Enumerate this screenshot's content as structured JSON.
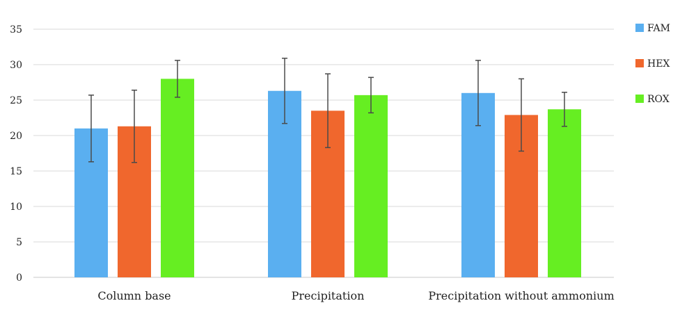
{
  "chart_data": {
    "type": "bar",
    "categories": [
      "Column base",
      "Precipitation",
      "Precipitation without ammonium"
    ],
    "series": [
      {
        "name": "FAM",
        "color": "#5aaff0",
        "values": [
          21.0,
          26.3,
          26.0
        ],
        "error": [
          4.7,
          4.6,
          4.6
        ]
      },
      {
        "name": "HEX",
        "color": "#f0672d",
        "values": [
          21.3,
          23.5,
          22.9
        ],
        "error": [
          5.1,
          5.2,
          5.1
        ]
      },
      {
        "name": "ROX",
        "color": "#66ee22",
        "values": [
          28.0,
          25.7,
          23.7
        ],
        "error": [
          2.6,
          2.5,
          2.4
        ]
      }
    ],
    "ylim": [
      0,
      35
    ],
    "yticks": [
      0,
      5,
      10,
      15,
      20,
      25,
      30,
      35
    ],
    "grid": true,
    "legend_position": "right",
    "title": "",
    "xlabel": "",
    "ylabel": ""
  }
}
